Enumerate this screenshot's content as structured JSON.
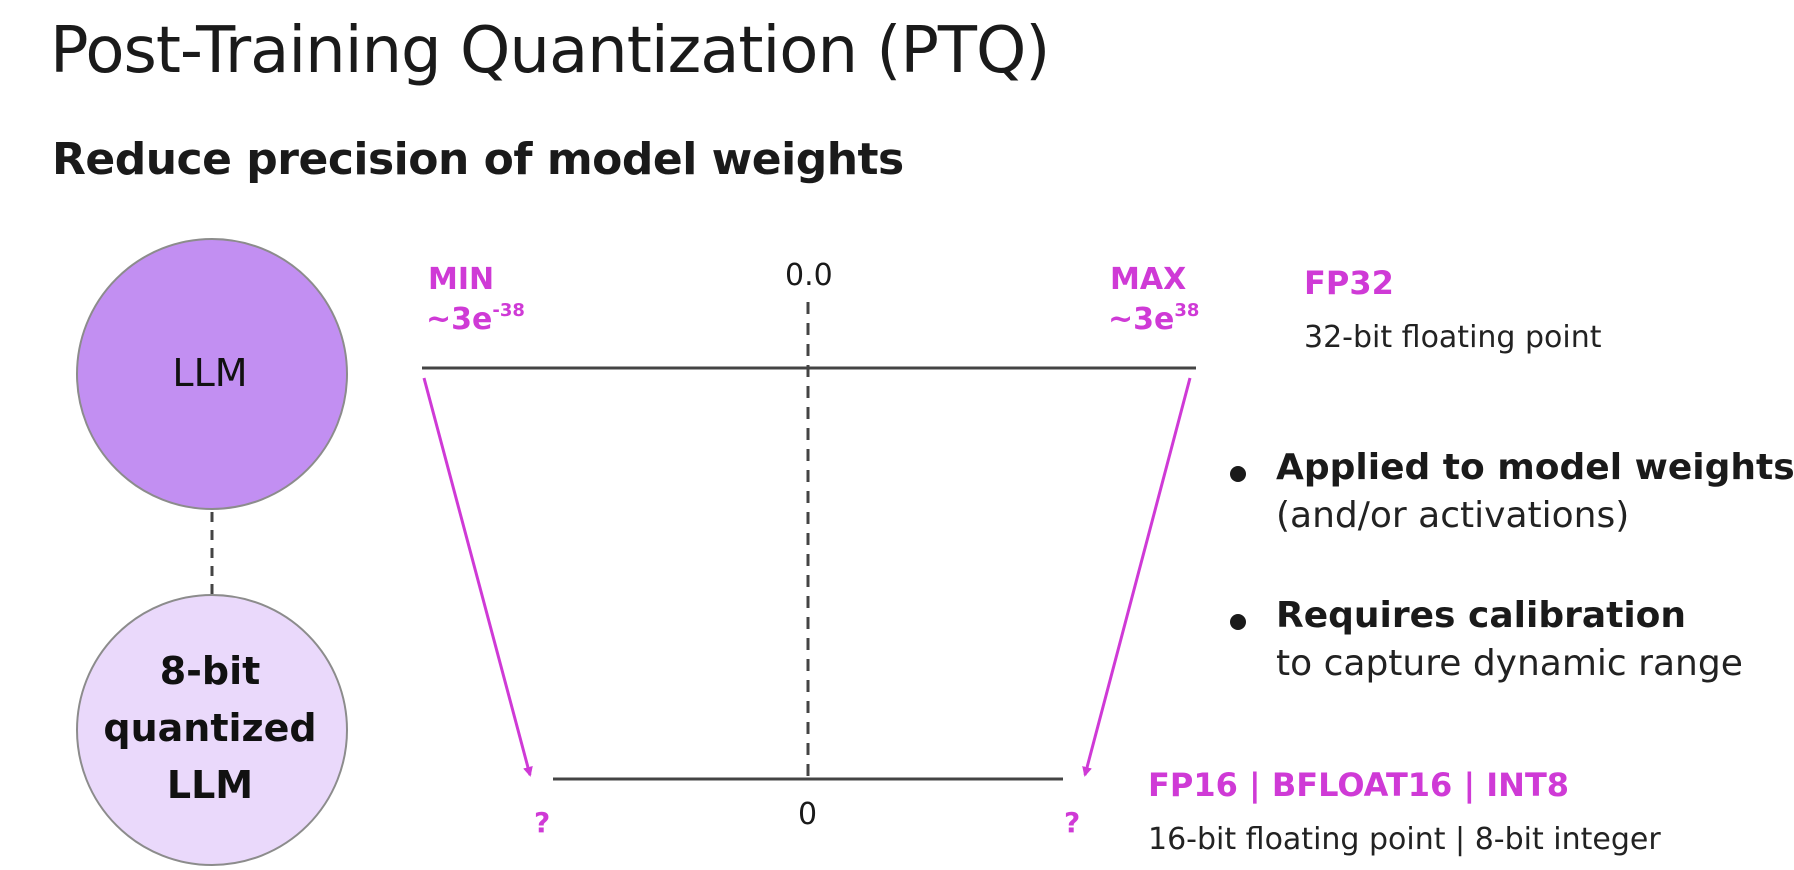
{
  "title": "Post-Training Quantization (PTQ)",
  "subtitle": "Reduce precision of model weights",
  "colors": {
    "accent": "#cf3ad6",
    "llm_fill": "#c28ff2",
    "quantized_fill": "#ead9fb",
    "circle_stroke": "#8c8c8c",
    "line": "#444444"
  },
  "models": {
    "original": "LLM",
    "quantized_line1": "8-bit",
    "quantized_line2": "quantized",
    "quantized_line3": "LLM"
  },
  "fp32_range": {
    "min_label": "MIN",
    "min_value": "~3e",
    "min_exp": "-38",
    "max_label": "MAX",
    "max_value": "~3e",
    "max_exp": "38",
    "zero": "0.0"
  },
  "quantized_range": {
    "left": "?",
    "right": "?",
    "zero": "0"
  },
  "formats": {
    "fp32_name": "FP32",
    "fp32_desc": "32-bit floating point",
    "low_name": "FP16 | BFLOAT16 | INT8",
    "low_desc": "16-bit floating point | 8-bit integer"
  },
  "bullets": [
    {
      "head": "Applied to model weights",
      "sub": "(and/or activations)"
    },
    {
      "head": "Requires calibration",
      "sub": "to capture dynamic range"
    }
  ]
}
